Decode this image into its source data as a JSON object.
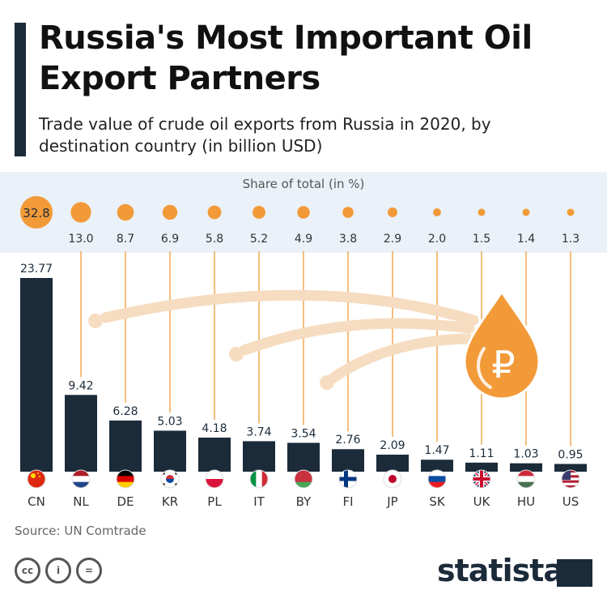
{
  "header": {
    "title": "Russia's Most Important Oil Export Partners",
    "subtitle": "Trade value of crude oil exports from Russia in 2020, by destination country (in billion USD)"
  },
  "share": {
    "label": "Share of total (in %)"
  },
  "chart_data": {
    "type": "bar",
    "title": "Russia's Most Important Oil Export Partners",
    "subtitle": "Trade value of crude oil exports from Russia in 2020, by destination country (in billion USD)",
    "categories": [
      "CN",
      "NL",
      "DE",
      "KR",
      "PL",
      "IT",
      "BY",
      "FI",
      "JP",
      "SK",
      "UK",
      "HU",
      "US"
    ],
    "values": [
      23.77,
      9.42,
      6.28,
      5.03,
      4.18,
      3.74,
      3.54,
      2.76,
      2.09,
      1.47,
      1.11,
      1.03,
      0.95
    ],
    "value_labels": [
      "23.77",
      "9.42",
      "6.28",
      "5.03",
      "4.18",
      "3.74",
      "3.54",
      "2.76",
      "2.09",
      "1.47",
      "1.11",
      "1.03",
      "0.95"
    ],
    "share_values": [
      32.8,
      13.0,
      8.7,
      6.9,
      5.8,
      5.2,
      4.9,
      3.8,
      2.9,
      2.0,
      1.5,
      1.4,
      1.3
    ],
    "share_labels": [
      "32.8",
      "13.0",
      "8.7",
      "6.9",
      "5.8",
      "5.2",
      "4.9",
      "3.8",
      "2.9",
      "2.0",
      "1.5",
      "1.4",
      "1.3"
    ],
    "ylim": [
      0,
      25
    ],
    "grid": false,
    "legend": "none",
    "bar_color": "#1c2b3a",
    "share_color": "#f29a38"
  },
  "flags": [
    {
      "code": "CN",
      "icon": "china-flag-icon",
      "type": "cn"
    },
    {
      "code": "NL",
      "icon": "netherlands-flag-icon",
      "type": "h",
      "colors": [
        "#ae1c28",
        "#ffffff",
        "#21468b"
      ]
    },
    {
      "code": "DE",
      "icon": "germany-flag-icon",
      "type": "h",
      "colors": [
        "#000000",
        "#dd0000",
        "#ffce00"
      ]
    },
    {
      "code": "KR",
      "icon": "south-korea-flag-icon",
      "type": "kr"
    },
    {
      "code": "PL",
      "icon": "poland-flag-icon",
      "type": "h",
      "colors": [
        "#ffffff",
        "#dc143c"
      ]
    },
    {
      "code": "IT",
      "icon": "italy-flag-icon",
      "type": "v",
      "colors": [
        "#009246",
        "#ffffff",
        "#ce2b37"
      ]
    },
    {
      "code": "BY",
      "icon": "belarus-flag-icon",
      "type": "h",
      "colors": [
        "#c8313e",
        "#c8313e",
        "#4aa657"
      ]
    },
    {
      "code": "FI",
      "icon": "finland-flag-icon",
      "type": "cross",
      "colors": [
        "#ffffff",
        "#003580"
      ]
    },
    {
      "code": "JP",
      "icon": "japan-flag-icon",
      "type": "jp"
    },
    {
      "code": "SK",
      "icon": "slovakia-flag-icon",
      "type": "h",
      "colors": [
        "#ffffff",
        "#0b4ea2",
        "#ee1c25"
      ]
    },
    {
      "code": "UK",
      "icon": "uk-flag-icon",
      "type": "uk"
    },
    {
      "code": "HU",
      "icon": "hungary-flag-icon",
      "type": "h",
      "colors": [
        "#ce2939",
        "#ffffff",
        "#477050"
      ]
    },
    {
      "code": "US",
      "icon": "usa-flag-icon",
      "type": "us"
    }
  ],
  "illustration": {
    "icon": "ruble-oil-drop-icon",
    "symbol": "₽",
    "arrow_color": "#f6dcc0"
  },
  "footer": {
    "source": "Source: UN Comtrade",
    "license_icons": [
      "cc-icon",
      "attribution-icon",
      "no-derivatives-icon"
    ],
    "license_glyphs": [
      "cc",
      "i",
      "="
    ],
    "brand": "statista"
  }
}
